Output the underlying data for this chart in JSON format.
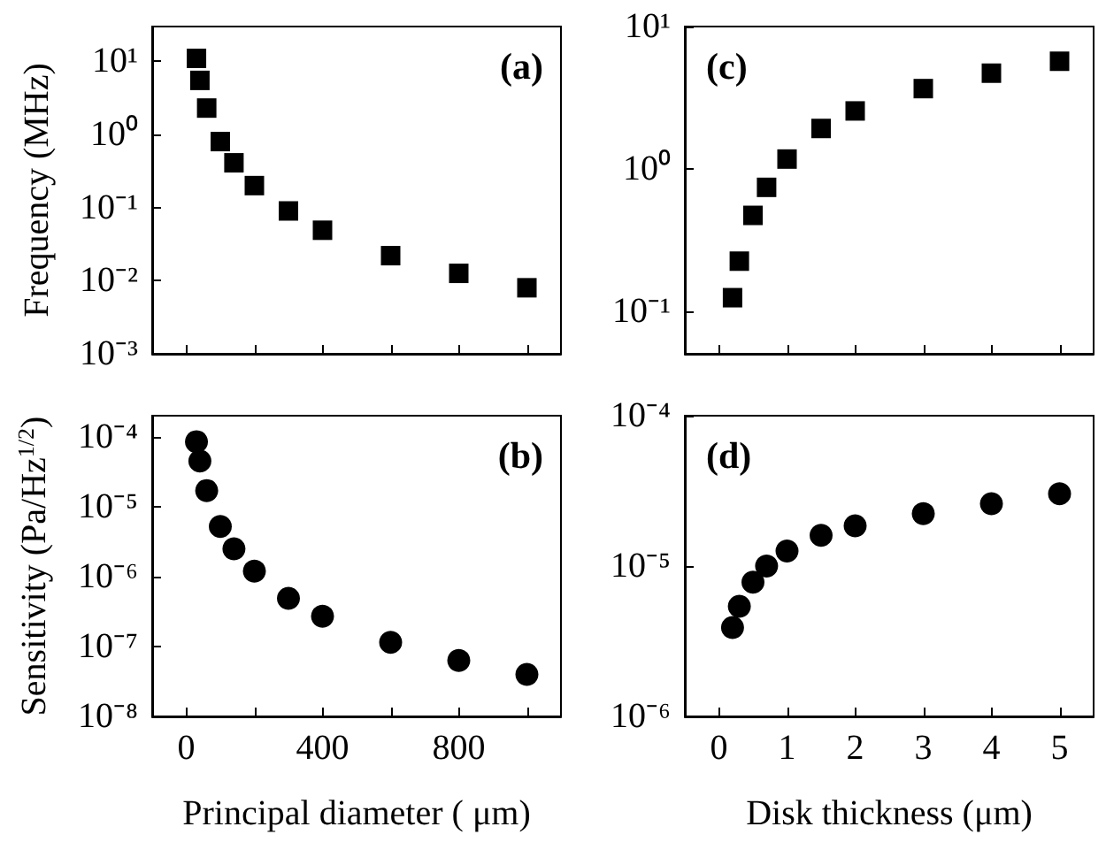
{
  "chart_data": [
    {
      "type": "scatter",
      "ylabel": "Frequency (MHz)",
      "annotations": [
        "(a)"
      ],
      "marker": "square",
      "log": "y",
      "tick_labels": "y",
      "xlim": [
        -100,
        1100
      ],
      "xticks": [
        {
          "value": 0,
          "label": null
        },
        {
          "value": 200,
          "label": null
        },
        {
          "value": 400,
          "label": null
        },
        {
          "value": 600,
          "label": null
        },
        {
          "value": 800,
          "label": null
        },
        {
          "value": 1000,
          "label": null
        }
      ],
      "ylim": [
        0.001,
        30
      ],
      "yticks": [
        {
          "value": 0.001,
          "label": "10⁻³"
        },
        {
          "value": 0.01,
          "label": "10⁻²"
        },
        {
          "value": 0.1,
          "label": "10⁻¹"
        },
        {
          "value": 1,
          "label": "10⁰"
        },
        {
          "value": 10,
          "label": "10¹"
        }
      ],
      "x": [
        30,
        40,
        60,
        100,
        140,
        200,
        300,
        400,
        600,
        800,
        1000
      ],
      "series": [
        {
          "color": "#000000",
          "values": [
            11,
            5.5,
            2.3,
            0.8,
            0.41,
            0.2,
            0.09,
            0.049,
            0.022,
            0.0126,
            0.008
          ]
        }
      ]
    },
    {
      "type": "scatter",
      "xlabel": "Principal diameter ( μm)",
      "ylabel": "Sensitivity (Pa/Hz$^{1/2}$)",
      "annotations": [
        "(b)"
      ],
      "marker": "circle",
      "log": "y",
      "xlim": [
        -100,
        1100
      ],
      "xticks": [
        0,
        {
          "value": 200,
          "label": null
        },
        400,
        {
          "value": 600,
          "label": null
        },
        800,
        {
          "value": 1000,
          "label": null
        }
      ],
      "ylim": [
        1e-08,
        0.0002
      ],
      "yticks": [
        {
          "value": 1e-08,
          "label": "10⁻⁸"
        },
        {
          "value": 1e-07,
          "label": "10⁻⁷"
        },
        {
          "value": 1e-06,
          "label": "10⁻⁶"
        },
        {
          "value": 1e-05,
          "label": "10⁻⁵"
        },
        {
          "value": 0.0001,
          "label": "10⁻⁴"
        }
      ],
      "x": [
        30,
        40,
        60,
        100,
        140,
        200,
        300,
        400,
        600,
        800,
        1000
      ],
      "series": [
        {
          "color": "#000000",
          "values": [
            8.5e-05,
            4.5e-05,
            1.7e-05,
            5.2e-06,
            2.5e-06,
            1.2e-06,
            4.9e-07,
            2.7e-07,
            1.15e-07,
            6.3e-08,
            4e-08
          ]
        }
      ]
    },
    {
      "type": "scatter",
      "annotations": [
        "(c)"
      ],
      "marker": "square",
      "log": "y",
      "tick_labels": "y",
      "xlim": [
        -0.5,
        5.5
      ],
      "xticks": [
        {
          "value": 0,
          "label": null
        },
        {
          "value": 1,
          "label": null
        },
        {
          "value": 2,
          "label": null
        },
        {
          "value": 3,
          "label": null
        },
        {
          "value": 4,
          "label": null
        },
        {
          "value": 5,
          "label": null
        }
      ],
      "ylim": [
        0.05,
        10
      ],
      "yticks": [
        {
          "value": 0.1,
          "label": "10⁻¹"
        },
        {
          "value": 1,
          "label": "10⁰"
        },
        {
          "value": 10,
          "label": "10¹"
        }
      ],
      "x": [
        0.2,
        0.3,
        0.5,
        0.7,
        1,
        1.5,
        2,
        3,
        4,
        5
      ],
      "series": [
        {
          "color": "#000000",
          "values": [
            0.124,
            0.224,
            0.47,
            0.74,
            1.17,
            1.92,
            2.55,
            3.66,
            4.7,
            5.7
          ]
        }
      ]
    },
    {
      "type": "scatter",
      "xlabel": "Disk thickness (μm)",
      "annotations": [
        "(d)"
      ],
      "marker": "circle",
      "log": "y",
      "xlim": [
        -0.5,
        5.5
      ],
      "xticks": [
        0,
        1,
        2,
        3,
        4,
        5
      ],
      "ylim": [
        1e-06,
        0.0001
      ],
      "yticks": [
        {
          "value": 1e-06,
          "label": "10⁻⁶"
        },
        {
          "value": 1e-05,
          "label": "10⁻⁵"
        },
        {
          "value": 0.0001,
          "label": "10⁻⁴"
        }
      ],
      "x": [
        0.2,
        0.3,
        0.5,
        0.7,
        1,
        1.5,
        2,
        3,
        4,
        5
      ],
      "series": [
        {
          "color": "#000000",
          "values": [
            3.9e-06,
            5.4e-06,
            7.8e-06,
            1e-05,
            1.26e-05,
            1.6e-05,
            1.85e-05,
            2.23e-05,
            2.6e-05,
            3.03e-05
          ]
        }
      ]
    }
  ]
}
